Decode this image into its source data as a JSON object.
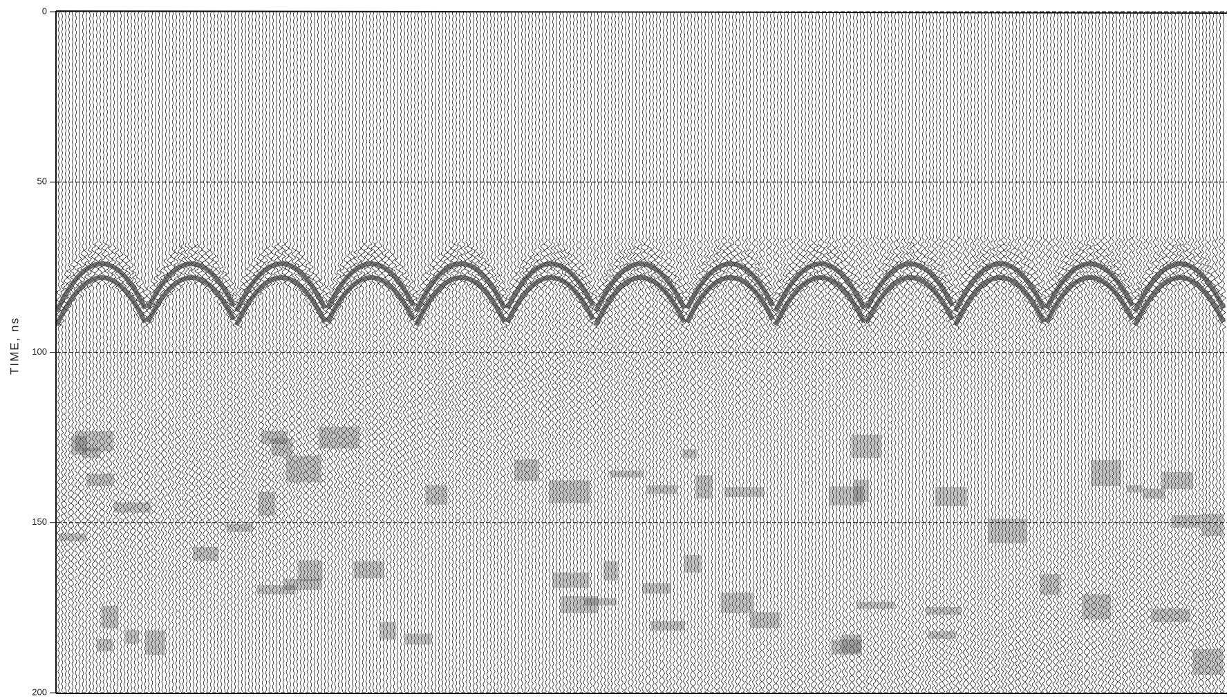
{
  "chart_data": {
    "type": "radargram",
    "ylabel": "TIME, ns",
    "ylim": [
      0,
      200
    ],
    "yticks": [
      0,
      50,
      100,
      150,
      200
    ],
    "grid": true
  }
}
